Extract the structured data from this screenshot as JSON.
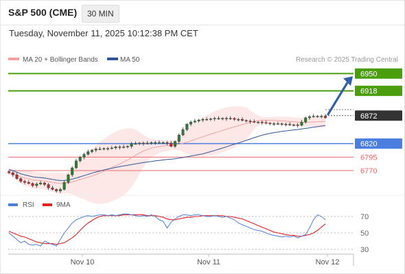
{
  "header": {
    "title": "S&P 500 (CME)",
    "timeframe": "30 MIN",
    "datetime": "Tuesday, November 11, 2025 10:12:38 PM CET"
  },
  "legend": {
    "items": [
      {
        "label": "MA 20 + Bollinger Bands",
        "color": "#f4a0a0"
      },
      {
        "label": "MA 50",
        "color": "#2f5597"
      }
    ],
    "copyright": "Research © 2025 Trading Central"
  },
  "colors": {
    "up": "#2e7d32",
    "down": "#c62828",
    "resistance": "#4a9e0c",
    "current": "#333333",
    "pivot": "#4a7fe0",
    "support": "#f06a6a",
    "arrow": "#2f5fa8",
    "ma20": "#f4a0a0",
    "ma50": "#2f5597",
    "band": "#fde3e3",
    "rsi": "#4a7fe0",
    "rsi_ma": "#e02020"
  },
  "chart_data": [
    {
      "type": "candlestick",
      "title": "S&P 500 (CME)",
      "timeframe": "30 MIN",
      "ylim": [
        6728,
        6962
      ],
      "x_ticks": [
        "Nov 10",
        "Nov 11",
        "Nov 12"
      ],
      "levels": [
        {
          "value": 6950,
          "kind": "resistance",
          "label": "6950"
        },
        {
          "value": 6918,
          "kind": "resistance",
          "label": "6918"
        },
        {
          "value": 6872,
          "kind": "current",
          "label": "6872"
        },
        {
          "value": 6820,
          "kind": "pivot",
          "label": "6820"
        },
        {
          "value": 6795,
          "kind": "support",
          "label": "6795"
        },
        {
          "value": 6770,
          "kind": "support",
          "label": "6770"
        }
      ],
      "indicators": [
        "MA 20 + Bollinger Bands",
        "MA 50"
      ],
      "scenario": {
        "from": 6872,
        "to": 6950,
        "direction": "up"
      },
      "close": [
        6766,
        6762,
        6755,
        6750,
        6748,
        6746,
        6742,
        6745,
        6747,
        6744,
        6738,
        6735,
        6732,
        6735,
        6748,
        6762,
        6775,
        6788,
        6795,
        6800,
        6805,
        6808,
        6810,
        6810,
        6811,
        6811,
        6812,
        6814,
        6813,
        6814,
        6815,
        6820,
        6820,
        6821,
        6820,
        6821,
        6822,
        6822,
        6822,
        6822,
        6821,
        6815,
        6824,
        6836,
        6846,
        6856,
        6860,
        6862,
        6864,
        6865,
        6865,
        6866,
        6867,
        6866,
        6867,
        6866,
        6867,
        6865,
        6865,
        6863,
        6862,
        6861,
        6860,
        6860,
        6859,
        6858,
        6857,
        6857,
        6857,
        6856,
        6856,
        6855,
        6855,
        6854,
        6860,
        6868,
        6870,
        6871,
        6871,
        6871,
        6868
      ]
    },
    {
      "type": "line",
      "title": "RSI",
      "series": [
        {
          "name": "RSI",
          "values": [
            50,
            46,
            42,
            38,
            40,
            36,
            35,
            36,
            34,
            40,
            38,
            36,
            34,
            42,
            50,
            56,
            62,
            66,
            68,
            70,
            71,
            70,
            71,
            72,
            72,
            71,
            72,
            71,
            72,
            73,
            73,
            72,
            71,
            70,
            71,
            70,
            72,
            70,
            66,
            64,
            56,
            63,
            67,
            70,
            72,
            72,
            71,
            72,
            72,
            71,
            70,
            70,
            71,
            70,
            69,
            70,
            68,
            66,
            62,
            60,
            58,
            56,
            54,
            53,
            52,
            50,
            48,
            47,
            46,
            45,
            46,
            45,
            46,
            44,
            46,
            48,
            56,
            66,
            72,
            70,
            66
          ]
        },
        {
          "name": "9MA",
          "values": [
            52,
            50,
            48,
            46,
            45,
            43,
            41,
            39,
            38,
            37,
            37,
            37,
            36,
            37,
            38,
            41,
            44,
            48,
            53,
            58,
            62,
            65,
            68,
            70,
            71,
            71,
            71,
            71,
            71,
            72,
            72,
            72,
            72,
            72,
            72,
            71,
            71,
            71,
            70,
            69,
            67,
            66,
            66,
            67,
            68,
            69,
            69,
            70,
            70,
            71,
            71,
            71,
            71,
            71,
            71,
            70,
            70,
            69,
            68,
            67,
            65,
            63,
            61,
            59,
            57,
            55,
            53,
            51,
            50,
            49,
            48,
            47,
            47,
            46,
            46,
            47,
            48,
            50,
            53,
            57,
            61
          ]
        }
      ],
      "ylim": [
        25,
        80
      ],
      "y_ticks": [
        "70",
        "50",
        "30"
      ],
      "x_ticks": [
        "Nov 10",
        "Nov 11",
        "Nov 12"
      ]
    }
  ]
}
